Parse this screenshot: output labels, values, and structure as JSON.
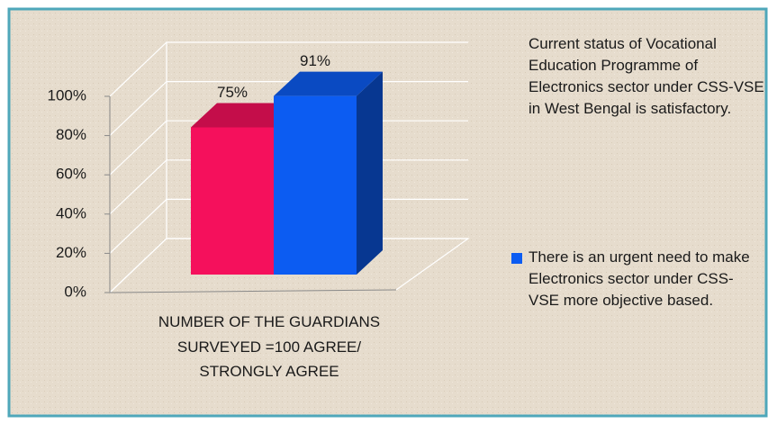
{
  "chart_data": {
    "type": "bar3d",
    "categories": [
      "NUMBER OF THE GUARDIANS SURVEYED =100   AGREE/ STRONGLY AGREE"
    ],
    "series": [
      {
        "name": "Current status of Vocational Education Programme  of Electronics sector under CSS-VSE in West Bengal is satisfactory.",
        "color": "#f5105c",
        "values": [
          75
        ],
        "value_labels": [
          "75%"
        ]
      },
      {
        "name": "There is an urgent need to make Electronics sector under CSS- VSE  more objective based.",
        "color": "#0c5cf2",
        "values": [
          91
        ],
        "value_labels": [
          "91%"
        ]
      }
    ],
    "ylim": [
      0,
      100
    ],
    "yticks": [
      {
        "value": 0,
        "label": "0%"
      },
      {
        "value": 20,
        "label": "20%"
      },
      {
        "value": 40,
        "label": "40%"
      },
      {
        "value": 60,
        "label": "60%"
      },
      {
        "value": 80,
        "label": "80%"
      },
      {
        "value": 100,
        "label": "100%"
      }
    ],
    "grid": true
  }
}
